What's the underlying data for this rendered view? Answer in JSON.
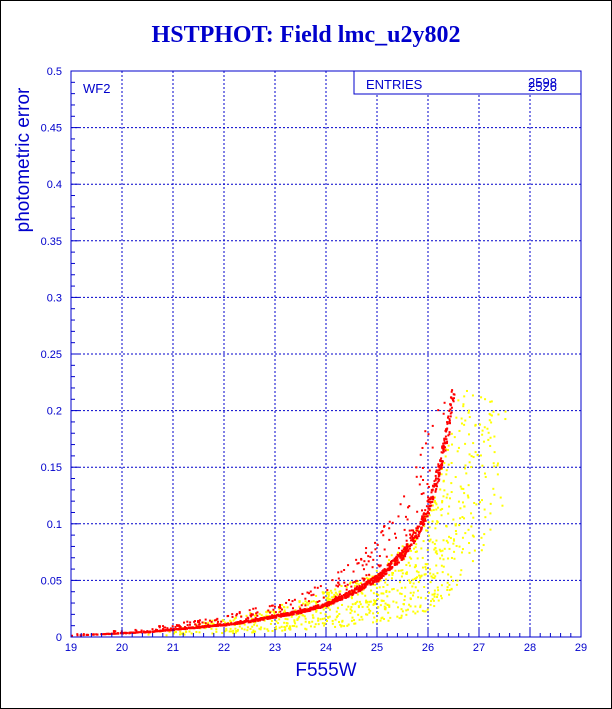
{
  "title": "HSTPHOT: Field lmc_u2y802",
  "colors": {
    "frame": "#0000cc",
    "grid": "#0000cc",
    "text": "#0000cc",
    "series_primary": "#ff0000",
    "series_secondary": "#ffff00",
    "page_border": "#000000"
  },
  "chart_data": {
    "type": "scatter",
    "title": "HSTPHOT: Field lmc_u2y802",
    "xlabel": "F555W",
    "ylabel": "photometric error",
    "xlim": [
      19,
      29
    ],
    "ylim": [
      0,
      0.5
    ],
    "grid": true,
    "x_ticks": [
      "19",
      "20",
      "21",
      "22",
      "23",
      "24",
      "25",
      "26",
      "27",
      "28",
      "29"
    ],
    "y_ticks": [
      "0",
      "0.05",
      "0.1",
      "0.15",
      "0.2",
      "0.25",
      "0.3",
      "0.35",
      "0.4",
      "0.45",
      "0.5"
    ],
    "panel_label": "WF2",
    "stats_box": {
      "label": "ENTRIES",
      "values": [
        "2598",
        "2526"
      ],
      "placement": "top-right"
    },
    "series": [
      {
        "color": "#ff0000",
        "x": [
          19.0,
          19.5,
          20.0,
          20.5,
          21.0,
          21.5,
          22.0,
          22.5,
          23.0,
          23.5,
          24.0,
          24.5,
          25.0,
          25.5,
          25.8,
          26.0,
          26.2,
          26.4,
          26.5
        ],
        "y": [
          0.002,
          0.003,
          0.004,
          0.005,
          0.007,
          0.009,
          0.011,
          0.014,
          0.018,
          0.022,
          0.028,
          0.038,
          0.05,
          0.07,
          0.09,
          0.11,
          0.14,
          0.18,
          0.215
        ]
      },
      {
        "color": "#ffff00",
        "x": [
          20.5,
          21.0,
          21.5,
          22.0,
          22.5,
          23.0,
          23.5,
          24.0,
          24.5,
          25.0,
          25.5,
          26.0,
          26.5,
          27.0,
          27.5
        ],
        "y": [
          0.003,
          0.004,
          0.005,
          0.006,
          0.008,
          0.01,
          0.012,
          0.015,
          0.018,
          0.022,
          0.03,
          0.04,
          0.07,
          0.12,
          0.2
        ]
      }
    ]
  }
}
